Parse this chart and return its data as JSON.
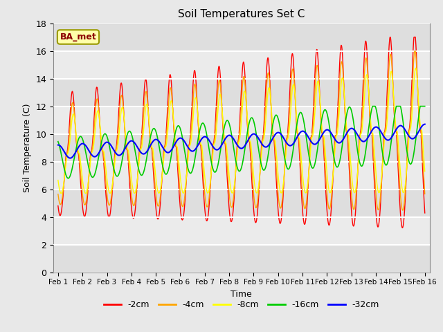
{
  "title": "Soil Temperatures Set C",
  "xlabel": "Time",
  "ylabel": "Soil Temperature (C)",
  "label_box": "BA_met",
  "ylim": [
    0,
    18
  ],
  "series_colors": {
    "-2cm": "#FF0000",
    "-4cm": "#FFA500",
    "-8cm": "#FFFF00",
    "-16cm": "#00CC00",
    "-32cm": "#0000FF"
  },
  "bg_color": "#E8E8E8",
  "n_days": 15,
  "samples_per_day": 96,
  "tick_labels": [
    "Feb 1",
    "Feb 2",
    "Feb 3",
    "Feb 4",
    "Feb 5",
    "Feb 6",
    "Feb 7",
    "Feb 8",
    "Feb 9",
    "Feb 10",
    "Feb 11",
    "Feb 12",
    "Feb 13",
    "Feb 14",
    "Feb 15",
    "Feb 16"
  ],
  "yticks": [
    0,
    2,
    4,
    6,
    8,
    10,
    12,
    14,
    16,
    18
  ],
  "legend_labels": [
    "-2cm",
    "-4cm",
    "-8cm",
    "-16cm",
    "-32cm"
  ]
}
